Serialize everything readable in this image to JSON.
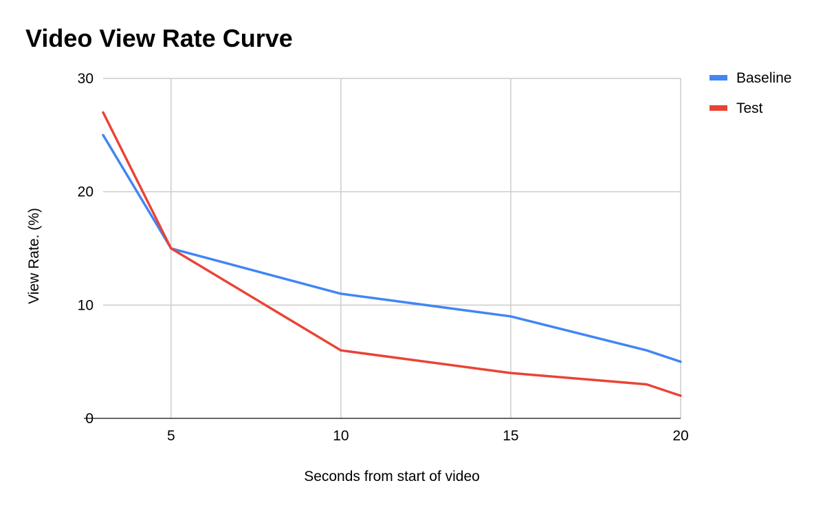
{
  "chart_data": {
    "type": "line",
    "title": "Video View Rate Curve",
    "xlabel": "Seconds from start of video",
    "ylabel": "View Rate. (%)",
    "xlim": [
      3,
      20
    ],
    "ylim": [
      0,
      30
    ],
    "x_ticks": [
      5,
      10,
      15,
      20
    ],
    "y_ticks": [
      0,
      10,
      20,
      30
    ],
    "grid": true,
    "legend_position": "top-right",
    "series": [
      {
        "name": "Baseline",
        "color": "#4285f4",
        "points": [
          [
            3,
            25
          ],
          [
            5,
            15
          ],
          [
            10,
            11
          ],
          [
            15,
            9
          ],
          [
            19,
            6
          ],
          [
            20,
            5
          ]
        ]
      },
      {
        "name": "Test",
        "color": "#ea4335",
        "points": [
          [
            3,
            27
          ],
          [
            5,
            15
          ],
          [
            10,
            6
          ],
          [
            15,
            4
          ],
          [
            19,
            3
          ],
          [
            20,
            2
          ]
        ]
      }
    ]
  }
}
